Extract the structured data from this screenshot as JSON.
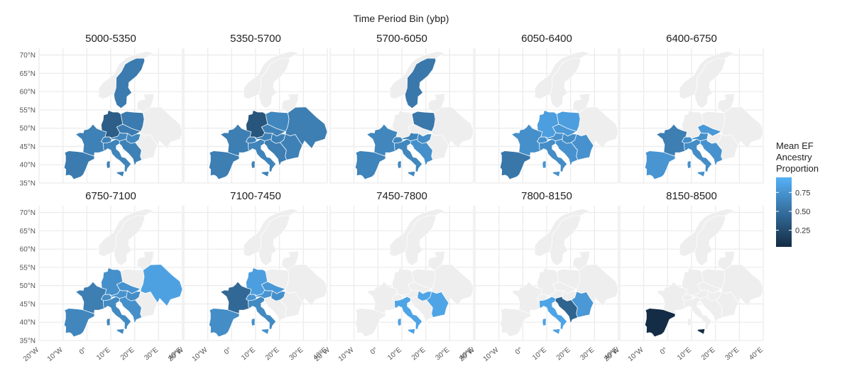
{
  "chart_data": {
    "type": "choropleth-facets",
    "title": "Time Period Bin (ybp)",
    "legend": {
      "title_lines": [
        "Mean EF",
        "Ancestry",
        "Proportion"
      ],
      "ticks": [
        0.75,
        0.5,
        0.25
      ],
      "tick_labels": [
        "0.75",
        "0.50",
        "0.25"
      ],
      "range": [
        0.03,
        0.95
      ],
      "color_low": "#132B43",
      "color_high": "#56B1F7",
      "placement": "right"
    },
    "missing_color": "#eeeeee",
    "x_ticks": [
      "20°W",
      "10°W",
      "0°",
      "10°E",
      "20°E",
      "30°E",
      "40°E"
    ],
    "y_ticks": [
      "70°N",
      "65°N",
      "60°N",
      "55°N",
      "50°N",
      "45°N",
      "40°N",
      "35°N"
    ],
    "xlim": [
      -20,
      40
    ],
    "ylim": [
      35,
      71
    ],
    "grid": true,
    "regions": [
      "Iberia",
      "France",
      "Italy",
      "Sardinia",
      "Sicily",
      "Switzerland",
      "Austria",
      "Germany",
      "Czechia",
      "Poland",
      "Hungary",
      "Balkans",
      "Romania",
      "Scandinavia",
      "Baltic",
      "Eastern Europe"
    ],
    "panels": [
      {
        "label": "5000-5350",
        "values": {
          "Iberia": 0.58,
          "France": 0.62,
          "Italy": 0.64,
          "Sardinia": 0.62,
          "Sicily": 0.62,
          "Switzerland": 0.62,
          "Austria": 0.66,
          "Germany": 0.38,
          "Czechia": 0.58,
          "Poland": 0.58,
          "Hungary": 0.66,
          "Balkans": 0.62,
          "Scandinavia": 0.58
        }
      },
      {
        "label": "5350-5700",
        "values": {
          "Iberia": 0.6,
          "France": 0.6,
          "Italy": 0.64,
          "Sardinia": 0.62,
          "Sicily": 0.62,
          "Switzerland": 0.62,
          "Austria": 0.62,
          "Germany": 0.32,
          "Czechia": 0.62,
          "Poland": 0.66,
          "Hungary": 0.62,
          "Balkans": 0.6,
          "Romania": 0.62,
          "Eastern Europe": 0.6
        }
      },
      {
        "label": "5700-6050",
        "values": {
          "Iberia": 0.64,
          "France": 0.66,
          "Italy": 0.66,
          "Sardinia": 0.66,
          "Sicily": 0.66,
          "Switzerland": 0.66,
          "Austria": 0.64,
          "Poland": 0.56,
          "Hungary": 0.7,
          "Balkans": 0.72,
          "Scandinavia": 0.56
        }
      },
      {
        "label": "6050-6400",
        "values": {
          "Iberia": 0.55,
          "France": 0.72,
          "Italy": 0.7,
          "Sardinia": 0.74,
          "Sicily": 0.74,
          "Switzerland": 0.74,
          "Austria": 0.74,
          "Germany": 0.82,
          "Czechia": 0.78,
          "Poland": 0.82,
          "Hungary": 0.7,
          "Balkans": 0.74,
          "Romania": 0.74
        }
      },
      {
        "label": "6400-6750",
        "values": {
          "Iberia": 0.76,
          "France": 0.6,
          "Italy": 0.7,
          "Sardinia": 0.72,
          "Sicily": 0.72,
          "Switzerland": 0.7,
          "Austria": 0.72,
          "Czechia": 0.78,
          "Balkans": 0.74
        }
      },
      {
        "label": "6750-7100",
        "values": {
          "Iberia": 0.66,
          "France": 0.6,
          "Italy": 0.68,
          "Sardinia": 0.66,
          "Sicily": 0.66,
          "Switzerland": 0.7,
          "Austria": 0.74,
          "Germany": 0.72,
          "Czechia": 0.74,
          "Hungary": 0.7,
          "Balkans": 0.72,
          "Eastern Europe": 0.84
        }
      },
      {
        "label": "7100-7450",
        "values": {
          "Iberia": 0.7,
          "France": 0.45,
          "Italy": 0.68,
          "Sardinia": 0.72,
          "Sicily": 0.72,
          "Switzerland": 0.76,
          "Austria": 0.76,
          "Germany": 0.82,
          "Czechia": 0.78,
          "Hungary": 0.72
        }
      },
      {
        "label": "7450-7800",
        "values": {
          "Italy": 0.86,
          "Sardinia": 0.84,
          "Sicily": 0.84,
          "Hungary": 0.86,
          "Romania": 0.86
        }
      },
      {
        "label": "7800-8150",
        "values": {
          "Italy": 0.86,
          "Sardinia": 0.84,
          "Sicily": 0.84,
          "Balkans": 0.42,
          "Romania": 0.78
        }
      },
      {
        "label": "8150-8500",
        "values": {
          "Iberia": 0.04,
          "Sicily": 0.04
        }
      }
    ]
  }
}
